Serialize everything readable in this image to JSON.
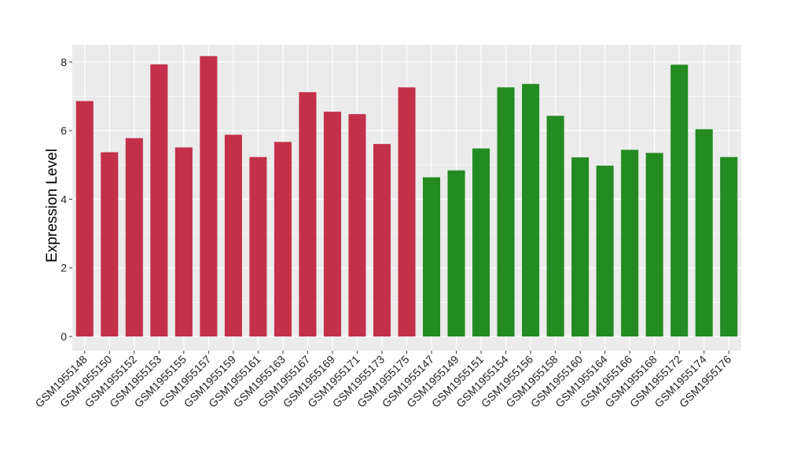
{
  "chart_data": {
    "type": "bar",
    "title": "",
    "xlabel": "",
    "ylabel": "Expression Level",
    "ylim": [
      0,
      8.5
    ],
    "yticks": [
      0,
      2,
      4,
      6,
      8
    ],
    "grid": true,
    "legend": "none",
    "colors": {
      "group_a": "#c3304a",
      "group_b": "#238b22",
      "panel": "#ebebeb",
      "grid": "#ffffff"
    },
    "categories": [
      "GSM1955148",
      "GSM1955150",
      "GSM1955152",
      "GSM1955153",
      "GSM1955155",
      "GSM1955157",
      "GSM1955159",
      "GSM1955161",
      "GSM1955163",
      "GSM1955167",
      "GSM1955169",
      "GSM1955171",
      "GSM1955173",
      "GSM1955175",
      "GSM1955147",
      "GSM1955149",
      "GSM1955151",
      "GSM1955154",
      "GSM1955156",
      "GSM1955158",
      "GSM1955160",
      "GSM1955164",
      "GSM1955166",
      "GSM1955168",
      "GSM1955172",
      "GSM1955174",
      "GSM1955176"
    ],
    "values": [
      6.86,
      5.37,
      5.78,
      7.93,
      5.51,
      8.17,
      5.88,
      5.23,
      5.67,
      7.12,
      6.55,
      6.48,
      5.61,
      7.26,
      4.64,
      4.84,
      5.48,
      7.26,
      7.36,
      6.43,
      5.22,
      4.98,
      5.44,
      5.35,
      7.92,
      6.04,
      5.23
    ],
    "groups": [
      "a",
      "a",
      "a",
      "a",
      "a",
      "a",
      "a",
      "a",
      "a",
      "a",
      "a",
      "a",
      "a",
      "a",
      "b",
      "b",
      "b",
      "b",
      "b",
      "b",
      "b",
      "b",
      "b",
      "b",
      "b",
      "b",
      "b"
    ]
  }
}
